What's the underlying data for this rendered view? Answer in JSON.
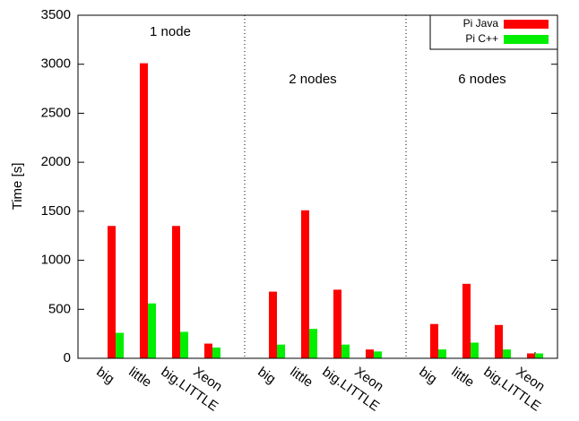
{
  "chart_data": {
    "type": "bar",
    "y_label": "Time [s]",
    "categories": [
      "big",
      "little",
      "big.LITTLE",
      "Xeon",
      null,
      "big",
      "little",
      "big.LITTLE",
      "Xeon",
      null,
      "big",
      "little",
      "big.LITTLE",
      "Xeon"
    ],
    "series": [
      {
        "name": "Pi Java",
        "color": "#ff0000",
        "values": [
          1350,
          3010,
          1350,
          150,
          null,
          680,
          1510,
          700,
          90,
          null,
          350,
          760,
          340,
          50
        ]
      },
      {
        "name": "Pi C++",
        "color": "#00ee00",
        "values": [
          260,
          560,
          270,
          110,
          null,
          140,
          300,
          140,
          70,
          null,
          90,
          160,
          90,
          50
        ]
      }
    ],
    "annotations": [
      "1 node",
      "2 nodes",
      "6 nodes"
    ],
    "ylim": [
      0,
      3500
    ],
    "yticks": [
      0,
      500,
      1000,
      1500,
      2000,
      2500,
      3000,
      3500
    ],
    "legend": "top-right"
  }
}
